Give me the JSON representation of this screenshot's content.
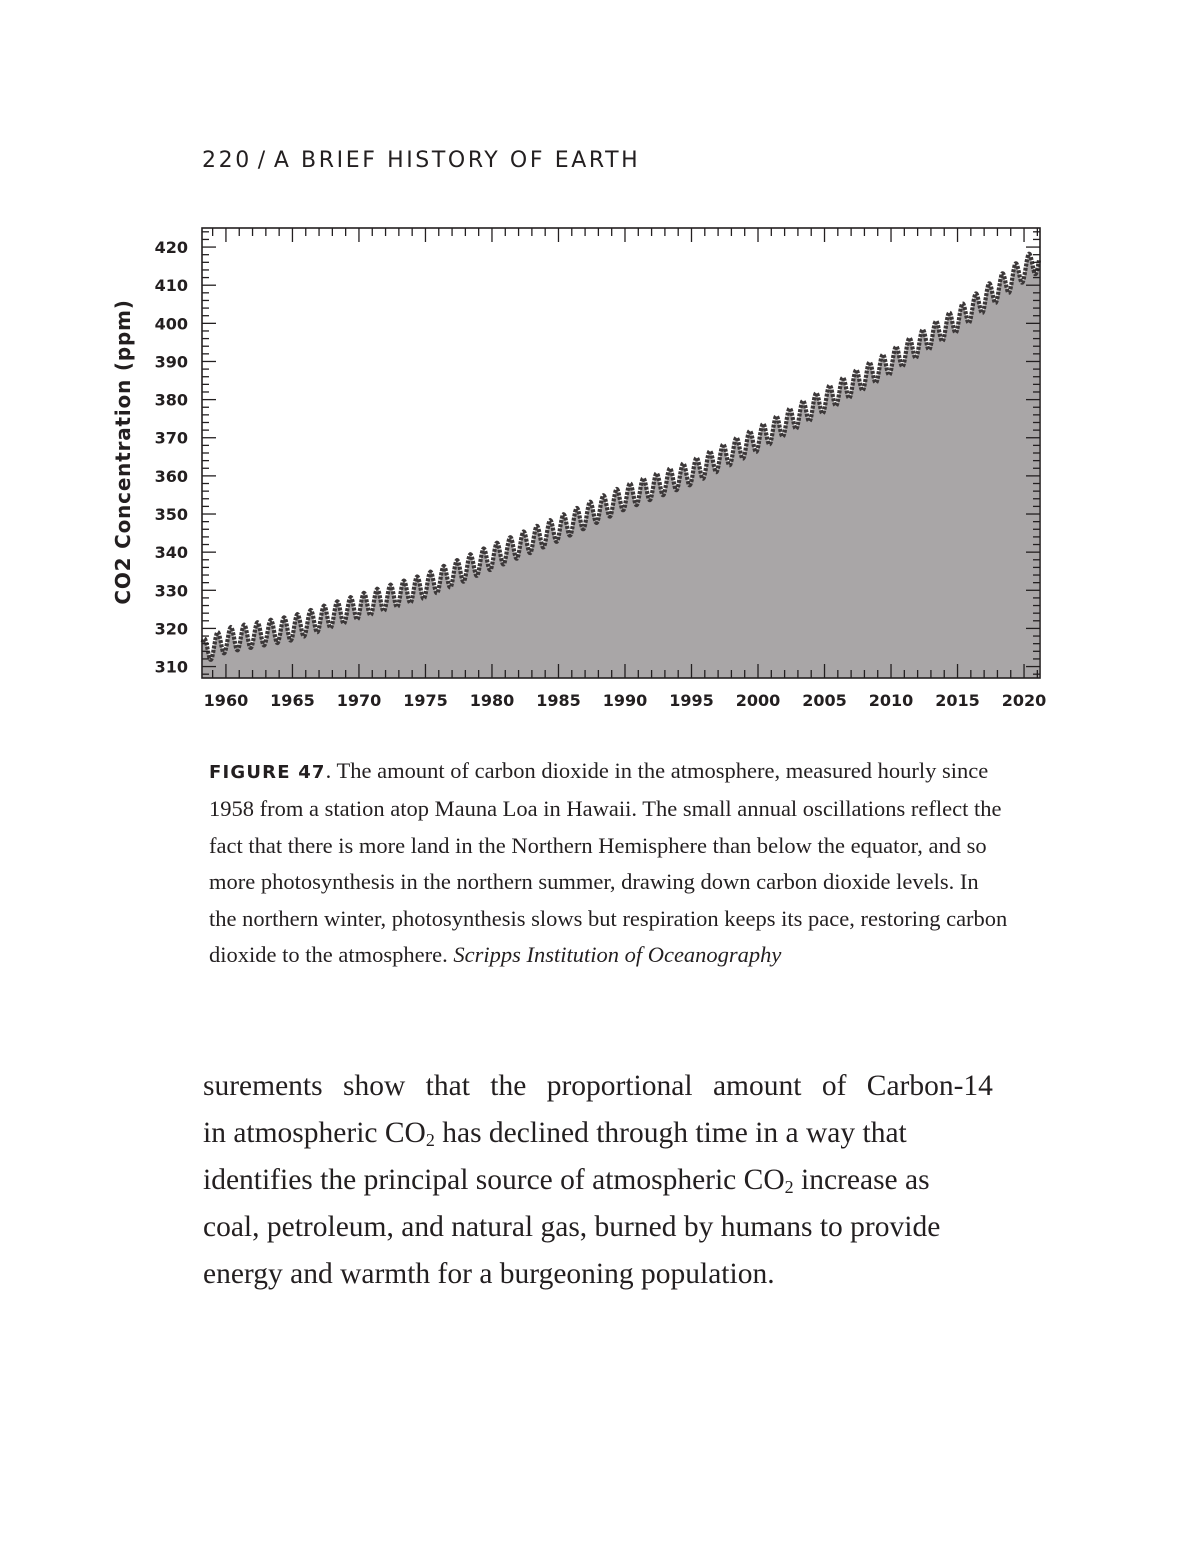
{
  "header": {
    "page_number": "220",
    "separator": "/",
    "book_title": "A BRIEF HISTORY OF EARTH"
  },
  "chart_data": {
    "type": "area",
    "title": "",
    "xlabel": "",
    "ylabel": "CO2 Concentration (ppm)",
    "xlim": [
      1958.2,
      2021.2
    ],
    "ylim": [
      307,
      425
    ],
    "x_ticks": [
      1960,
      1965,
      1970,
      1975,
      1980,
      1985,
      1990,
      1995,
      2000,
      2005,
      2010,
      2015,
      2020
    ],
    "x_tick_labels": [
      "1960",
      "1965",
      "1970",
      "1975",
      "1980",
      "1985",
      "1990",
      "1995",
      "2000",
      "2005",
      "2010",
      "2015",
      "2020"
    ],
    "y_ticks": [
      310,
      320,
      330,
      340,
      350,
      360,
      370,
      380,
      390,
      400,
      410,
      420
    ],
    "y_tick_labels": [
      "310",
      "320",
      "330",
      "340",
      "350",
      "360",
      "370",
      "380",
      "390",
      "400",
      "410",
      "420"
    ],
    "grid": false,
    "series": [
      {
        "x": [
          1958.3,
          1960,
          1965,
          1970,
          1975,
          1980,
          1985,
          1990,
          1995,
          2000,
          2005,
          2010,
          2015,
          2020,
          2021
        ],
        "values": [
          314,
          316.9,
          320.1,
          325.7,
          331.1,
          338.7,
          346.1,
          354.4,
          360.9,
          369.7,
          379.8,
          389.9,
          401,
          414.2,
          416.4
        ],
        "seasonal_amplitude": 3.2,
        "fill_color": "#a9a6a7",
        "line_color": "#3c3839"
      }
    ]
  },
  "caption": {
    "figure_label": "FIGURE 47",
    "text": ". The amount of carbon dioxide in the atmosphere, measured hourly since 1958 from a station atop Mauna Loa in Hawaii. The small annual oscillations reflect the fact that there is more land in the Northern Hemisphere than below the equator, and so more photosynthesis in the northern summer, drawing down carbon dioxide levels. In the northern winter, photosynthesis slows but respiration keeps its pace, restoring carbon dioxide to the atmosphere.",
    "credit": "Scripps Institution of Oceanography"
  },
  "body": {
    "line1": [
      "surements",
      "show",
      "that",
      "the",
      "proportional",
      "amount",
      "of",
      "Carbon-14"
    ],
    "line2_a": "in atmospheric CO",
    "line2_sub": "2",
    "line2_b": " has declined through time in a way that",
    "line3_a": "identifies the principal source of atmospheric CO",
    "line3_sub": "2",
    "line3_b": " increase as",
    "line4": "coal, petroleum, and natural gas, burned by humans to provide",
    "line5": "energy and warmth for a burgeoning population."
  }
}
